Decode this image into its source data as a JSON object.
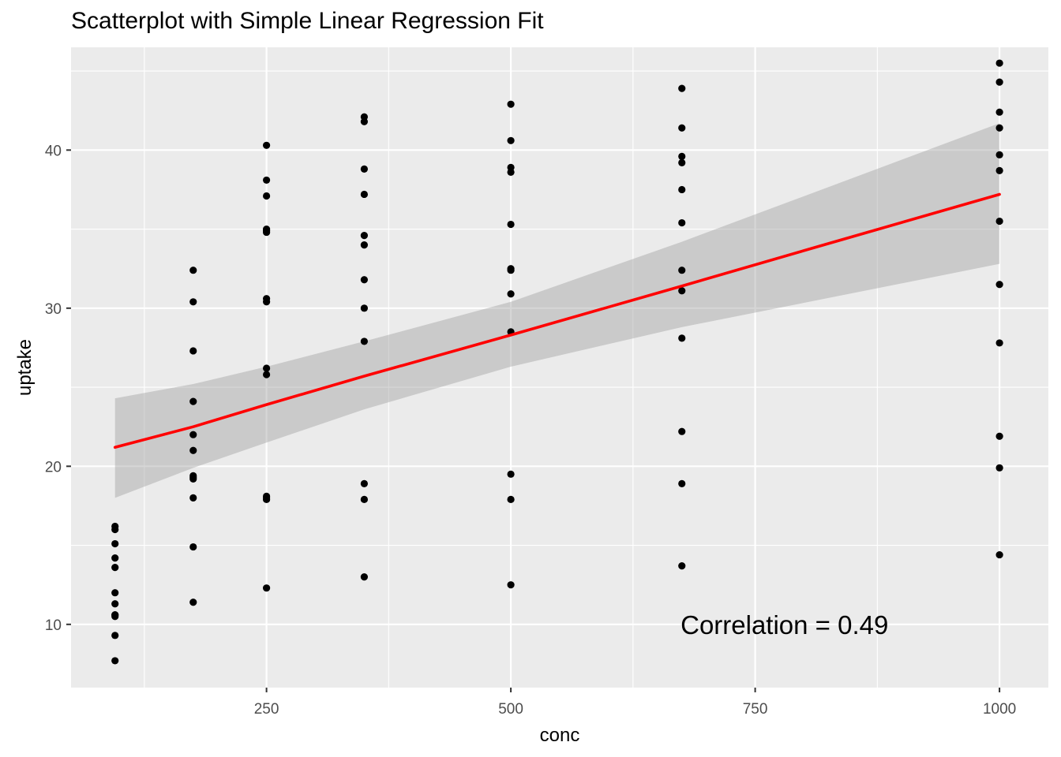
{
  "chart_data": {
    "type": "scatter",
    "title": "Scatterplot with Simple Linear Regression Fit",
    "xlabel": "conc",
    "ylabel": "uptake",
    "xlim": [
      50,
      1050
    ],
    "ylim": [
      6.0,
      46.5
    ],
    "x_ticks": [
      250,
      500,
      750,
      1000
    ],
    "y_ticks": [
      10,
      20,
      30,
      40
    ],
    "grid": true,
    "points": [
      [
        95,
        16.0
      ],
      [
        95,
        13.6
      ],
      [
        95,
        16.2
      ],
      [
        95,
        10.6
      ],
      [
        95,
        11.3
      ],
      [
        95,
        12.0
      ],
      [
        95,
        7.7
      ],
      [
        95,
        9.3
      ],
      [
        95,
        10.5
      ],
      [
        95,
        15.1
      ],
      [
        95,
        10.6
      ],
      [
        95,
        14.2
      ],
      [
        175,
        30.4
      ],
      [
        175,
        27.3
      ],
      [
        175,
        32.4
      ],
      [
        175,
        22.0
      ],
      [
        175,
        19.4
      ],
      [
        175,
        24.1
      ],
      [
        175,
        11.4
      ],
      [
        175,
        14.9
      ],
      [
        175,
        18.0
      ],
      [
        175,
        21.0
      ],
      [
        175,
        19.2
      ],
      [
        175,
        19.3
      ],
      [
        250,
        34.8
      ],
      [
        250,
        37.1
      ],
      [
        250,
        40.3
      ],
      [
        250,
        30.6
      ],
      [
        250,
        25.8
      ],
      [
        250,
        34.9
      ],
      [
        250,
        12.3
      ],
      [
        250,
        18.1
      ],
      [
        250,
        17.9
      ],
      [
        250,
        26.2
      ],
      [
        250,
        30.4
      ],
      [
        250,
        35.0
      ],
      [
        250,
        38.1
      ],
      [
        250,
        18.0
      ],
      [
        350,
        37.2
      ],
      [
        350,
        41.8
      ],
      [
        350,
        42.1
      ],
      [
        350,
        27.9
      ],
      [
        350,
        30.0
      ],
      [
        350,
        34.6
      ],
      [
        350,
        13.0
      ],
      [
        350,
        17.9
      ],
      [
        350,
        18.9
      ],
      [
        350,
        31.8
      ],
      [
        350,
        34.0
      ],
      [
        350,
        38.8
      ],
      [
        500,
        35.3
      ],
      [
        500,
        40.6
      ],
      [
        500,
        42.9
      ],
      [
        500,
        32.4
      ],
      [
        500,
        38.6
      ],
      [
        500,
        38.9
      ],
      [
        500,
        12.5
      ],
      [
        500,
        17.9
      ],
      [
        500,
        19.5
      ],
      [
        500,
        28.5
      ],
      [
        500,
        30.9
      ],
      [
        500,
        32.5
      ],
      [
        675,
        39.2
      ],
      [
        675,
        41.4
      ],
      [
        675,
        43.9
      ],
      [
        675,
        31.1
      ],
      [
        675,
        37.5
      ],
      [
        675,
        39.6
      ],
      [
        675,
        13.7
      ],
      [
        675,
        18.9
      ],
      [
        675,
        22.2
      ],
      [
        675,
        28.1
      ],
      [
        675,
        32.4
      ],
      [
        675,
        35.4
      ],
      [
        1000,
        39.7
      ],
      [
        1000,
        44.3
      ],
      [
        1000,
        45.5
      ],
      [
        1000,
        31.5
      ],
      [
        1000,
        38.7
      ],
      [
        1000,
        41.4
      ],
      [
        1000,
        14.4
      ],
      [
        1000,
        19.9
      ],
      [
        1000,
        21.9
      ],
      [
        1000,
        27.8
      ],
      [
        1000,
        35.5
      ],
      [
        1000,
        42.4
      ]
    ],
    "fit": {
      "color": "#ff0000",
      "line": [
        [
          95,
          21.2
        ],
        [
          175,
          22.5
        ],
        [
          250,
          23.9
        ],
        [
          350,
          25.7
        ],
        [
          500,
          28.3
        ],
        [
          675,
          31.4
        ],
        [
          820,
          34.0
        ],
        [
          1000,
          37.2
        ]
      ],
      "ci_band_color": "#cccccc",
      "ci_upper": [
        [
          95,
          24.3
        ],
        [
          175,
          25.2
        ],
        [
          250,
          26.3
        ],
        [
          350,
          27.9
        ],
        [
          500,
          30.4
        ],
        [
          675,
          34.2
        ],
        [
          1000,
          41.7
        ]
      ],
      "ci_lower": [
        [
          95,
          18.0
        ],
        [
          175,
          19.9
        ],
        [
          250,
          21.5
        ],
        [
          350,
          23.6
        ],
        [
          500,
          26.3
        ],
        [
          675,
          28.8
        ],
        [
          1000,
          32.8
        ]
      ]
    },
    "annotation": {
      "text": "Correlation = 0.49",
      "x": 780,
      "y": 10.0
    },
    "colors": {
      "panel": "#ebebeb",
      "grid": "#ffffff",
      "points": "#000000",
      "axis_text": "#4d4d4d"
    }
  }
}
